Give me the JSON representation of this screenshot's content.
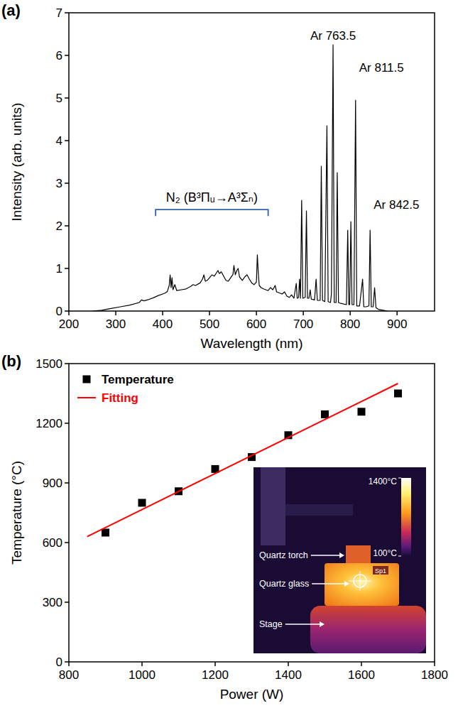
{
  "chart_data": [
    {
      "panel_label": "(a)",
      "type": "line",
      "x_label": "Wavelength (nm)",
      "y_label": "Intensity (arb. units)",
      "x": [
        250,
        270,
        290,
        310,
        330,
        350,
        355,
        360,
        370,
        380,
        390,
        400,
        405,
        410,
        414,
        416,
        418,
        420,
        422,
        426,
        430,
        440,
        450,
        460,
        465,
        470,
        480,
        485,
        488,
        491,
        495,
        500,
        505,
        510,
        515,
        518,
        521,
        525,
        530,
        535,
        540,
        545,
        550,
        552,
        555,
        558,
        561,
        564,
        570,
        575,
        580,
        585,
        590,
        595,
        600,
        602,
        604,
        606,
        610,
        615,
        620,
        625,
        630,
        635,
        640,
        643,
        650,
        655,
        660,
        665,
        670,
        675,
        680,
        685,
        687,
        690,
        692,
        694,
        696.5,
        699,
        704,
        706.7,
        709,
        712,
        714.7,
        717,
        724,
        727.3,
        730,
        736,
        738.4,
        741,
        746,
        750.4,
        753,
        758,
        760,
        763.5,
        766,
        770,
        772.4,
        775,
        780,
        792,
        794.8,
        797,
        799,
        801.5,
        804,
        808,
        811.5,
        814,
        820,
        826.5,
        829,
        834,
        840,
        842.5,
        845,
        849,
        852.1,
        855,
        860,
        870,
        880
      ],
      "values": [
        0,
        0.02,
        0.06,
        0.1,
        0.14,
        0.2,
        0.26,
        0.24,
        0.27,
        0.31,
        0.36,
        0.4,
        0.42,
        0.46,
        0.6,
        0.85,
        0.55,
        0.78,
        0.5,
        0.62,
        0.48,
        0.5,
        0.52,
        0.58,
        0.62,
        0.6,
        0.66,
        0.75,
        0.85,
        0.7,
        0.72,
        0.78,
        0.85,
        0.82,
        0.9,
        0.95,
        0.88,
        0.92,
        0.82,
        0.72,
        0.7,
        0.78,
        0.86,
        1.07,
        0.85,
        0.95,
        1.0,
        0.8,
        0.72,
        0.8,
        0.85,
        0.75,
        0.66,
        0.62,
        0.68,
        1.32,
        0.9,
        0.6,
        0.55,
        0.52,
        0.5,
        0.48,
        0.55,
        0.5,
        0.6,
        0.45,
        0.42,
        0.4,
        0.45,
        0.35,
        0.32,
        0.38,
        0.3,
        0.65,
        0.3,
        0.32,
        0.75,
        0.3,
        2.6,
        0.3,
        0.32,
        2.35,
        0.3,
        0.3,
        0.5,
        0.28,
        0.26,
        0.75,
        0.25,
        0.25,
        3.4,
        0.25,
        0.22,
        4.35,
        0.22,
        0.2,
        0.4,
        6.25,
        0.2,
        0.2,
        3.25,
        0.2,
        0.18,
        0.15,
        1.9,
        0.15,
        0.15,
        2.1,
        0.15,
        0.15,
        4.95,
        0.12,
        0.12,
        0.75,
        0.1,
        0.1,
        0.12,
        1.9,
        0.1,
        0.1,
        0.55,
        0.08,
        0.04,
        0.02,
        0
      ],
      "color": "#000000",
      "xlim": [
        200,
        980
      ],
      "ylim": [
        0,
        7
      ],
      "xticks": [
        200,
        300,
        400,
        500,
        600,
        700,
        800,
        900
      ],
      "yticks": [
        0,
        1,
        2,
        3,
        4,
        5,
        6,
        7
      ],
      "grid": false,
      "annotations": [
        {
          "text": "N₂ (B³Πᵤ→A³Σₙ)",
          "x_range": [
            385,
            625
          ]
        },
        {
          "text": "Ar 763.5",
          "x": 763.5
        },
        {
          "text": "Ar 811.5",
          "x": 811.5
        },
        {
          "text": "Ar 842.5",
          "x": 842.5
        }
      ]
    },
    {
      "panel_label": "(b)",
      "type": "scatter",
      "x_label": "Power (W)",
      "y_label": "Temperature (°C)",
      "xlim": [
        800,
        1800
      ],
      "ylim": [
        0,
        1500
      ],
      "xticks": [
        800,
        1000,
        1200,
        1400,
        1600,
        1800
      ],
      "yticks": [
        0,
        300,
        600,
        900,
        1200,
        1500
      ],
      "grid": false,
      "legend": "top-left",
      "series": [
        {
          "name": "Temperature",
          "type": "scatter",
          "marker": "square",
          "color": "#000000",
          "x": [
            900,
            1000,
            1100,
            1200,
            1300,
            1400,
            1500,
            1600,
            1700
          ],
          "values": [
            650,
            800,
            858,
            970,
            1030,
            1140,
            1245,
            1258,
            1350
          ]
        },
        {
          "name": "Fitting",
          "type": "line",
          "line_style": "solid",
          "color": "#ff0000",
          "x": [
            850,
            1700
          ],
          "values": [
            630,
            1400
          ]
        }
      ],
      "inset": {
        "labels": [
          "Quartz torch",
          "Quartz glass",
          "Stage"
        ],
        "spot_label": "Sp1",
        "colorbar": {
          "range": [
            100,
            1400
          ],
          "ticks": [
            {
              "value": 1400,
              "label": "1400°C"
            },
            {
              "value": 100,
              "label": "100°C"
            }
          ]
        }
      }
    }
  ]
}
